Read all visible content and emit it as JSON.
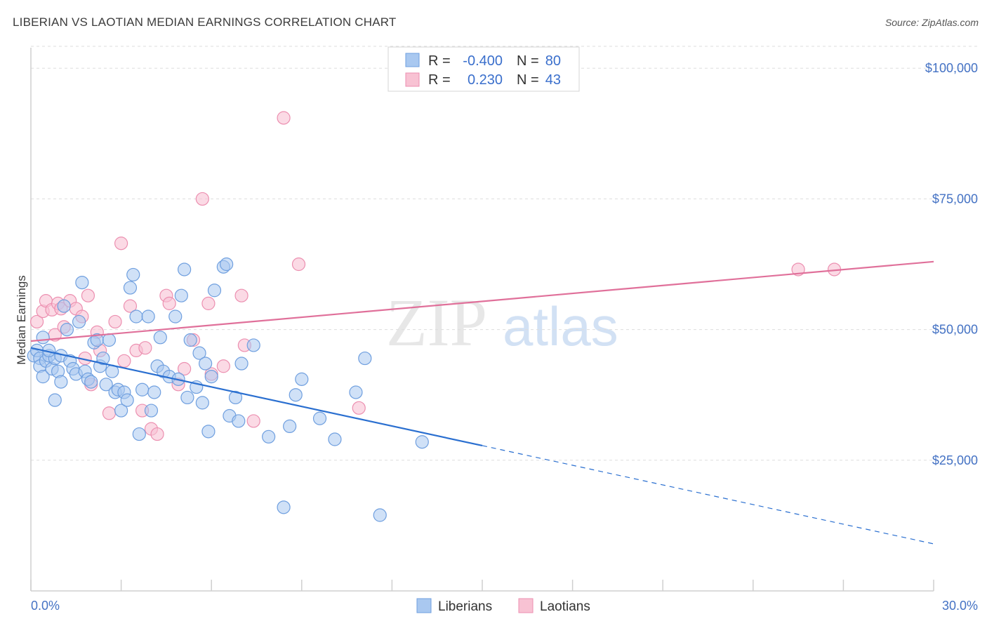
{
  "title": "LIBERIAN VS LAOTIAN MEDIAN EARNINGS CORRELATION CHART",
  "source": "Source: ZipAtlas.com",
  "watermark": {
    "zip": "ZIP",
    "atlas": "atlas"
  },
  "legend": {
    "r_label": "R =",
    "n_label": "N =",
    "rows": [
      {
        "r": "-0.400",
        "n": "80"
      },
      {
        "r": "0.230",
        "n": "43"
      }
    ]
  },
  "bottom_legend": [
    "Liberians",
    "Laotians"
  ],
  "colors": {
    "blue_fill": "#a9c8f0",
    "blue_stroke": "#6f9fdf",
    "blue_line": "#2a6fd0",
    "pink_fill": "#f8c2d3",
    "pink_stroke": "#ec8fb0",
    "pink_line": "#e0709a",
    "axis_label": "#4472c4",
    "grid": "#dddddd"
  },
  "chart_data": {
    "type": "scatter",
    "title": "LIBERIAN VS LAOTIAN MEDIAN EARNINGS CORRELATION CHART",
    "ylabel": "Median Earnings",
    "xlabel": "",
    "xlim": [
      0,
      30
    ],
    "ylim": [
      0,
      105000
    ],
    "x_tick_labels": [
      "0.0%",
      "30.0%"
    ],
    "y_tick_labels": [
      "$25,000",
      "$50,000",
      "$75,000",
      "$100,000"
    ],
    "y_ticks": [
      25000,
      50000,
      75000,
      100000
    ],
    "grid": "horizontal dashed",
    "series": [
      {
        "name": "Liberians",
        "r": -0.4,
        "n": 80,
        "trend": {
          "x0": 0,
          "y0": 46500,
          "x1": 15,
          "y1": 27800,
          "dash_to_x": 30,
          "dash_to_y": 9000
        },
        "points": [
          [
            0.1,
            45000
          ],
          [
            0.2,
            46000
          ],
          [
            0.3,
            44500
          ],
          [
            0.3,
            43000
          ],
          [
            0.4,
            48500
          ],
          [
            0.4,
            41000
          ],
          [
            0.5,
            44000
          ],
          [
            0.6,
            45000
          ],
          [
            0.7,
            42500
          ],
          [
            0.8,
            44500
          ],
          [
            0.8,
            36500
          ],
          [
            0.9,
            42000
          ],
          [
            1.0,
            40000
          ],
          [
            1.0,
            45000
          ],
          [
            1.1,
            54500
          ],
          [
            1.2,
            50000
          ],
          [
            1.3,
            44000
          ],
          [
            1.4,
            42500
          ],
          [
            1.5,
            41500
          ],
          [
            1.6,
            51500
          ],
          [
            1.7,
            59000
          ],
          [
            1.8,
            42000
          ],
          [
            1.9,
            40500
          ],
          [
            2.0,
            40000
          ],
          [
            2.1,
            47500
          ],
          [
            2.2,
            48000
          ],
          [
            2.3,
            43000
          ],
          [
            2.4,
            44500
          ],
          [
            2.5,
            39500
          ],
          [
            2.6,
            48000
          ],
          [
            2.7,
            42000
          ],
          [
            2.8,
            38000
          ],
          [
            2.9,
            38500
          ],
          [
            3.0,
            34500
          ],
          [
            3.1,
            38000
          ],
          [
            3.2,
            36500
          ],
          [
            3.3,
            58000
          ],
          [
            3.4,
            60500
          ],
          [
            3.5,
            52500
          ],
          [
            3.6,
            30000
          ],
          [
            3.7,
            38500
          ],
          [
            3.9,
            52500
          ],
          [
            4.0,
            34500
          ],
          [
            4.1,
            38000
          ],
          [
            4.2,
            43000
          ],
          [
            4.3,
            48500
          ],
          [
            4.4,
            42000
          ],
          [
            4.6,
            41000
          ],
          [
            4.8,
            52500
          ],
          [
            4.9,
            40500
          ],
          [
            5.0,
            56500
          ],
          [
            5.1,
            61500
          ],
          [
            5.2,
            37000
          ],
          [
            5.3,
            48000
          ],
          [
            5.5,
            39000
          ],
          [
            5.6,
            45500
          ],
          [
            5.7,
            36000
          ],
          [
            5.8,
            43500
          ],
          [
            5.9,
            30500
          ],
          [
            6.0,
            41000
          ],
          [
            6.1,
            57500
          ],
          [
            6.4,
            62000
          ],
          [
            6.5,
            62500
          ],
          [
            6.6,
            33500
          ],
          [
            6.8,
            37000
          ],
          [
            6.9,
            32500
          ],
          [
            7.0,
            43500
          ],
          [
            7.4,
            47000
          ],
          [
            7.9,
            29500
          ],
          [
            8.4,
            16000
          ],
          [
            8.6,
            31500
          ],
          [
            8.8,
            37500
          ],
          [
            9.0,
            40500
          ],
          [
            9.6,
            33000
          ],
          [
            10.1,
            29000
          ],
          [
            10.8,
            38000
          ],
          [
            11.1,
            44500
          ],
          [
            11.6,
            14500
          ],
          [
            13.0,
            28500
          ],
          [
            0.6,
            46000
          ]
        ]
      },
      {
        "name": "Laotians",
        "r": 0.23,
        "n": 43,
        "trend": {
          "x0": 0,
          "y0": 47800,
          "x1": 30,
          "y1": 63000
        },
        "points": [
          [
            0.2,
            51500
          ],
          [
            0.4,
            53500
          ],
          [
            0.5,
            55500
          ],
          [
            0.7,
            53800
          ],
          [
            0.8,
            49000
          ],
          [
            0.9,
            55000
          ],
          [
            1.0,
            54000
          ],
          [
            1.1,
            50500
          ],
          [
            1.3,
            55500
          ],
          [
            1.5,
            54000
          ],
          [
            1.7,
            52500
          ],
          [
            1.8,
            44500
          ],
          [
            1.9,
            56500
          ],
          [
            2.0,
            39500
          ],
          [
            2.2,
            49500
          ],
          [
            2.3,
            46000
          ],
          [
            2.6,
            34000
          ],
          [
            2.8,
            51500
          ],
          [
            3.0,
            66500
          ],
          [
            3.1,
            44000
          ],
          [
            3.3,
            54500
          ],
          [
            3.5,
            46000
          ],
          [
            3.7,
            34500
          ],
          [
            3.8,
            46500
          ],
          [
            4.0,
            31000
          ],
          [
            4.2,
            30000
          ],
          [
            4.5,
            56500
          ],
          [
            4.6,
            55000
          ],
          [
            4.9,
            39500
          ],
          [
            5.1,
            42500
          ],
          [
            5.4,
            48000
          ],
          [
            5.7,
            75000
          ],
          [
            5.9,
            55000
          ],
          [
            6.0,
            41500
          ],
          [
            6.4,
            43000
          ],
          [
            7.0,
            56500
          ],
          [
            7.1,
            47000
          ],
          [
            7.4,
            32500
          ],
          [
            8.4,
            90500
          ],
          [
            8.9,
            62500
          ],
          [
            10.9,
            35000
          ],
          [
            25.5,
            61500
          ],
          [
            26.7,
            61500
          ]
        ]
      }
    ]
  }
}
